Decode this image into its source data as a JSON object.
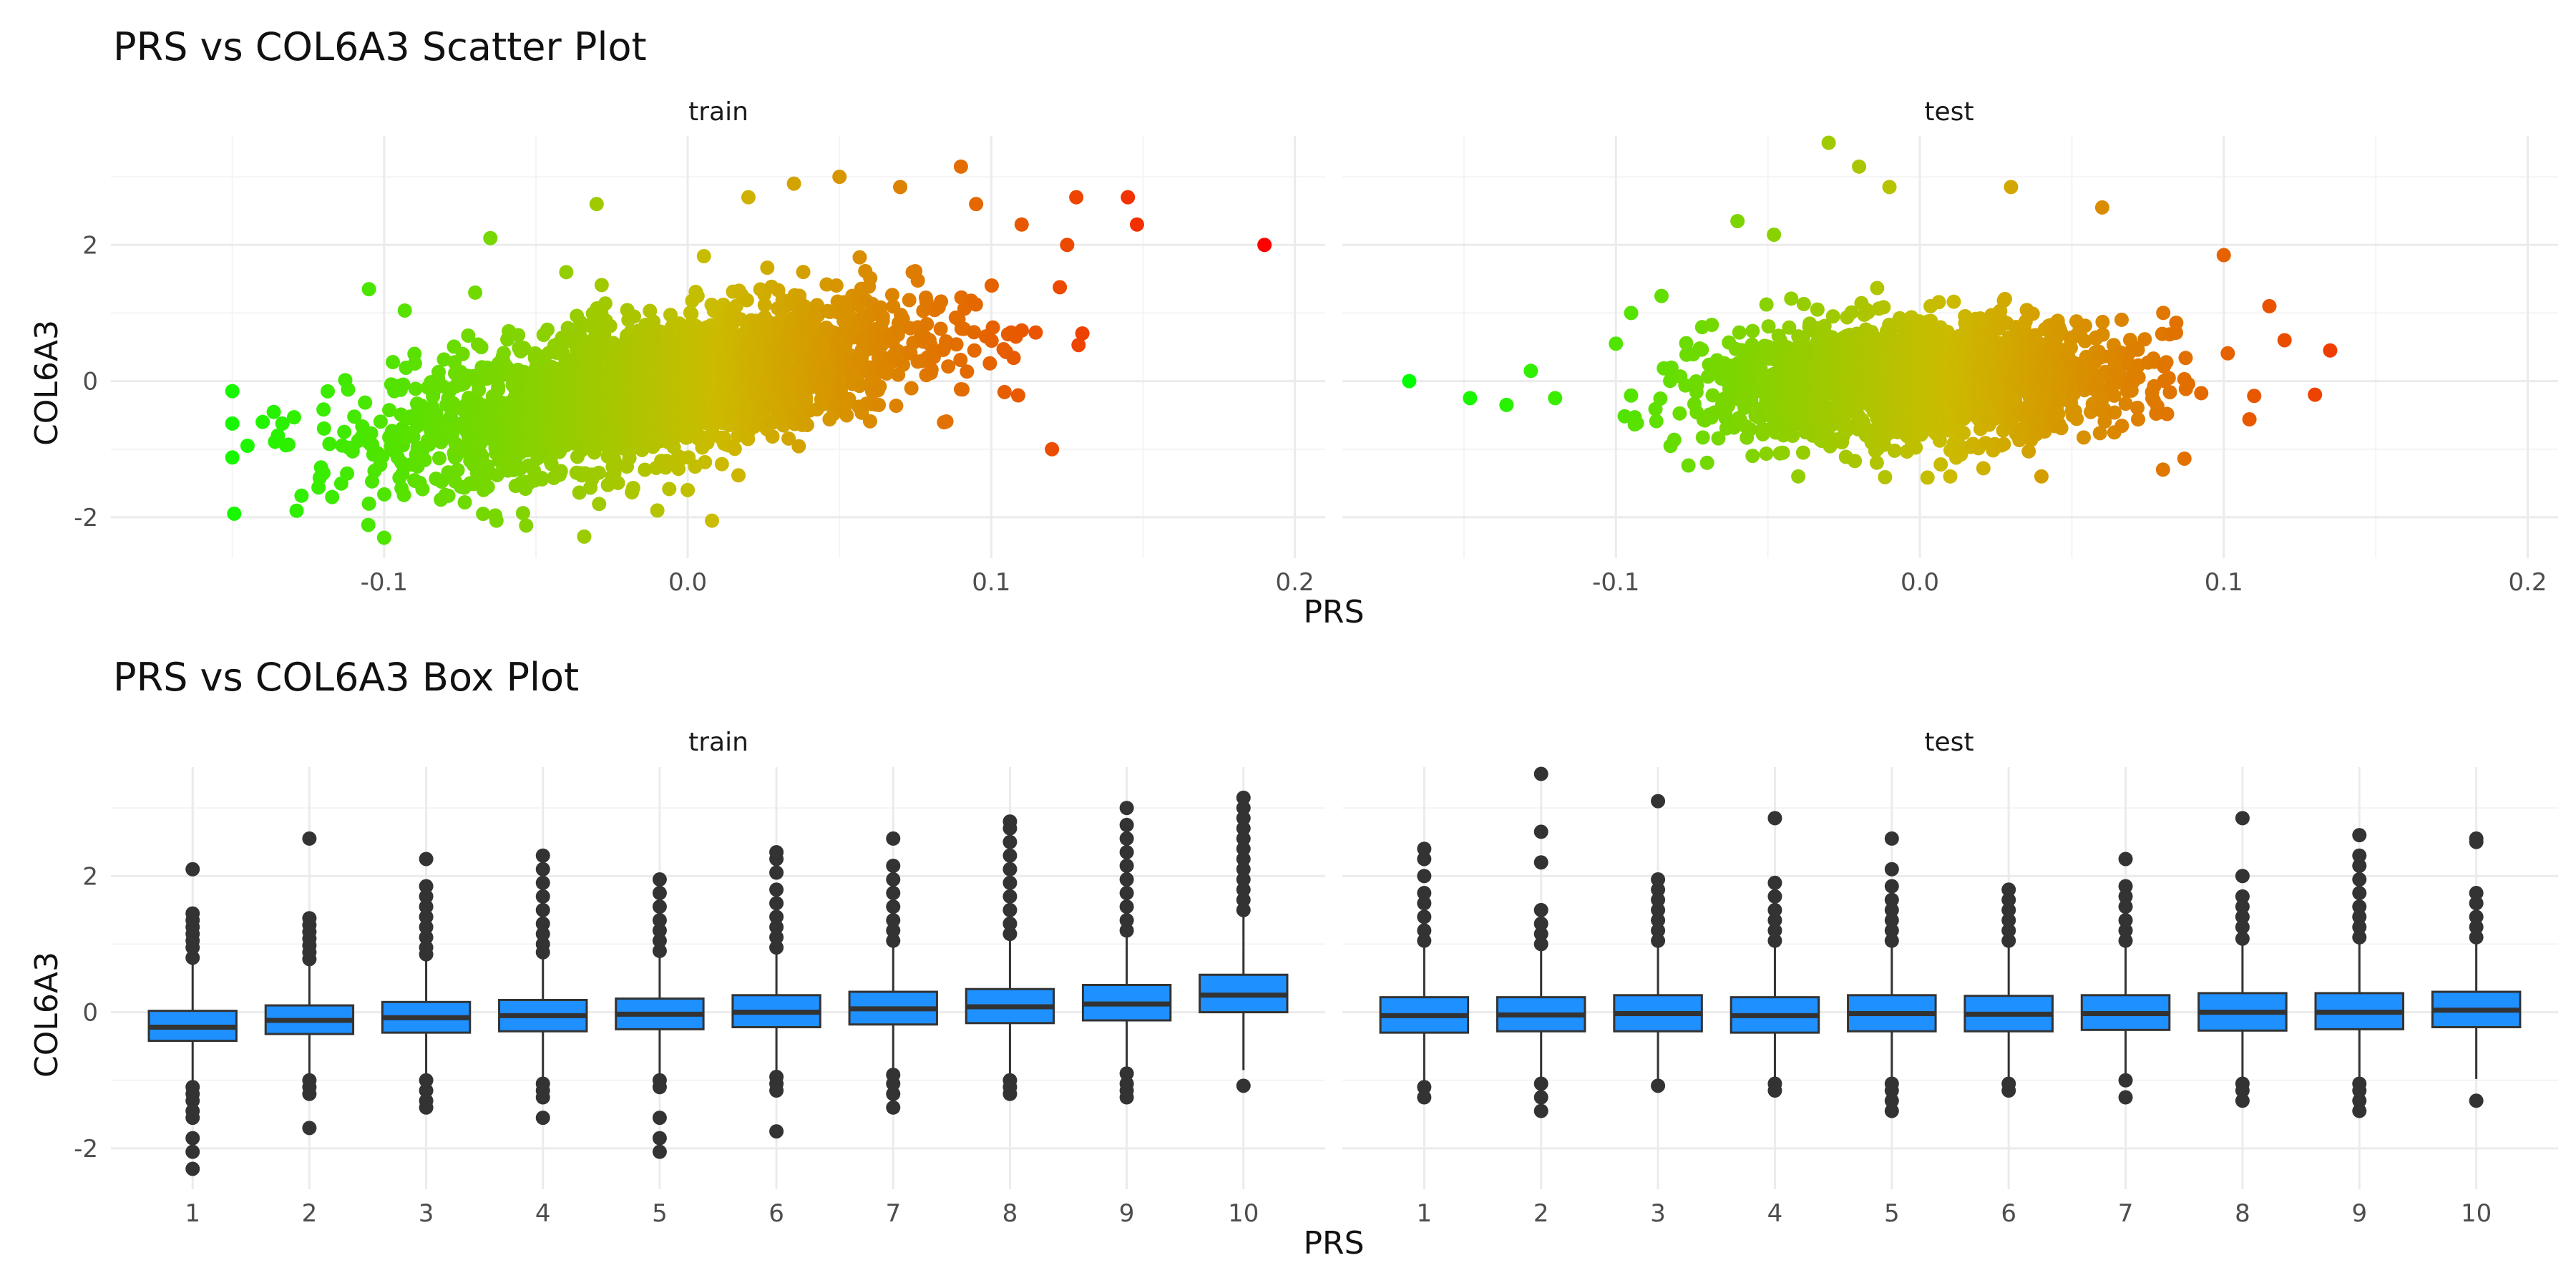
{
  "chart_data": [
    {
      "type": "scatter",
      "title": "PRS vs COL6A3 Scatter Plot",
      "xlabel": "PRS",
      "ylabel": "COL6A3",
      "panels": [
        "train",
        "test"
      ],
      "xlim": [
        -0.19,
        0.21
      ],
      "ylim": [
        -2.6,
        3.6
      ],
      "xticks": [
        -0.1,
        0.0,
        0.1,
        0.2
      ],
      "xtick_labels": [
        "-0.1",
        "0.0",
        "0.1",
        "0.2"
      ],
      "yticks": [
        -2,
        0,
        2
      ],
      "ytick_labels": [
        "-2",
        "0",
        "2"
      ],
      "color_scale": {
        "low": "#00ff00",
        "high": "#ff0000",
        "mapped_to": "PRS"
      },
      "grid": true,
      "legend": "none",
      "series": [
        {
          "panel": "train",
          "cloud": {
            "x_range": [
              -0.15,
              0.14
            ],
            "slope": 8.0,
            "x_sd": 0.042,
            "y_sd": 0.5,
            "n": 2600
          },
          "points": [
            {
              "x": -0.145,
              "y": -0.95
            },
            {
              "x": -0.14,
              "y": -0.6
            },
            {
              "x": -0.135,
              "y": -0.8
            },
            {
              "x": -0.12,
              "y": -1.35
            },
            {
              "x": -0.105,
              "y": 1.35
            },
            {
              "x": -0.105,
              "y": -1.8
            },
            {
              "x": -0.1,
              "y": -2.3
            },
            {
              "x": -0.09,
              "y": 0.4
            },
            {
              "x": -0.07,
              "y": 1.3
            },
            {
              "x": -0.065,
              "y": 2.1
            },
            {
              "x": -0.063,
              "y": -2.05
            },
            {
              "x": -0.055,
              "y": -1.5
            },
            {
              "x": -0.04,
              "y": 1.6
            },
            {
              "x": -0.03,
              "y": 2.6
            },
            {
              "x": -0.01,
              "y": -1.9
            },
            {
              "x": 0.0,
              "y": -1.6
            },
            {
              "x": 0.008,
              "y": -2.05
            },
            {
              "x": 0.02,
              "y": 2.7
            },
            {
              "x": 0.035,
              "y": 2.9
            },
            {
              "x": 0.05,
              "y": 3.0
            },
            {
              "x": 0.07,
              "y": 2.85
            },
            {
              "x": 0.09,
              "y": 3.15
            },
            {
              "x": 0.095,
              "y": 2.6
            },
            {
              "x": 0.11,
              "y": 2.3
            },
            {
              "x": 0.12,
              "y": -1.0
            },
            {
              "x": 0.125,
              "y": 2.0
            },
            {
              "x": 0.128,
              "y": 2.7
            },
            {
              "x": 0.13,
              "y": 0.7
            },
            {
              "x": 0.145,
              "y": 2.7
            },
            {
              "x": 0.148,
              "y": 2.3
            },
            {
              "x": 0.19,
              "y": 2.0
            }
          ]
        },
        {
          "panel": "test",
          "cloud": {
            "x_range": [
              -0.1,
              0.11
            ],
            "slope": 1.5,
            "x_sd": 0.034,
            "y_sd": 0.42,
            "n": 1900
          },
          "points": [
            {
              "x": -0.168,
              "y": 0.0
            },
            {
              "x": -0.148,
              "y": -0.25
            },
            {
              "x": -0.136,
              "y": -0.35
            },
            {
              "x": -0.128,
              "y": 0.15
            },
            {
              "x": -0.12,
              "y": -0.25
            },
            {
              "x": -0.1,
              "y": 0.55
            },
            {
              "x": -0.095,
              "y": 1.0
            },
            {
              "x": -0.085,
              "y": 1.25
            },
            {
              "x": -0.07,
              "y": -1.2
            },
            {
              "x": -0.06,
              "y": 2.35
            },
            {
              "x": -0.048,
              "y": 2.15
            },
            {
              "x": -0.04,
              "y": -1.4
            },
            {
              "x": -0.03,
              "y": 3.5
            },
            {
              "x": -0.02,
              "y": 3.15
            },
            {
              "x": -0.01,
              "y": 2.85
            },
            {
              "x": 0.01,
              "y": -1.4
            },
            {
              "x": 0.03,
              "y": 2.85
            },
            {
              "x": 0.04,
              "y": -1.4
            },
            {
              "x": 0.06,
              "y": 2.55
            },
            {
              "x": 0.08,
              "y": -1.3
            },
            {
              "x": 0.1,
              "y": 1.85
            },
            {
              "x": 0.115,
              "y": 1.1
            },
            {
              "x": 0.12,
              "y": 0.6
            },
            {
              "x": 0.13,
              "y": -0.2
            },
            {
              "x": 0.135,
              "y": 0.45
            }
          ]
        }
      ]
    },
    {
      "type": "box",
      "title": "PRS vs COL6A3 Box Plot",
      "xlabel": "PRS",
      "ylabel": "COL6A3",
      "panels": [
        "train",
        "test"
      ],
      "categories": [
        "1",
        "2",
        "3",
        "4",
        "5",
        "6",
        "7",
        "8",
        "9",
        "10"
      ],
      "ylim": [
        -2.6,
        3.6
      ],
      "yticks": [
        -2,
        0,
        2
      ],
      "ytick_labels": [
        "-2",
        "0",
        "2"
      ],
      "fill_color": "#1e90ff",
      "grid": true,
      "series": [
        {
          "panel": "train",
          "boxes": [
            {
              "q1": -0.42,
              "median": -0.22,
              "q3": 0.02,
              "whisker_low": -1.05,
              "whisker_high": 0.72,
              "outliers_high": [
                0.8,
                0.95,
                1.05,
                1.15,
                1.25,
                1.35,
                1.45,
                2.1
              ],
              "outliers_low": [
                -1.1,
                -1.2,
                -1.3,
                -1.45,
                -1.55,
                -1.85,
                -2.05,
                -2.3
              ]
            },
            {
              "q1": -0.32,
              "median": -0.12,
              "q3": 0.1,
              "whisker_low": -0.95,
              "whisker_high": 0.72,
              "outliers_high": [
                0.78,
                0.88,
                0.98,
                1.08,
                1.18,
                1.28,
                1.38,
                2.55
              ],
              "outliers_low": [
                -1.0,
                -1.1,
                -1.2,
                -1.7
              ]
            },
            {
              "q1": -0.3,
              "median": -0.08,
              "q3": 0.15,
              "whisker_low": -0.95,
              "whisker_high": 0.8,
              "outliers_high": [
                0.85,
                0.95,
                1.1,
                1.25,
                1.4,
                1.55,
                1.7,
                1.85,
                2.25
              ],
              "outliers_low": [
                -1.0,
                -1.15,
                -1.3,
                -1.4
              ]
            },
            {
              "q1": -0.28,
              "median": -0.05,
              "q3": 0.18,
              "whisker_low": -1.0,
              "whisker_high": 0.82,
              "outliers_high": [
                0.88,
                1.0,
                1.15,
                1.3,
                1.5,
                1.7,
                1.9,
                2.1,
                2.3
              ],
              "outliers_low": [
                -1.05,
                -1.15,
                -1.25,
                -1.55
              ]
            },
            {
              "q1": -0.25,
              "median": -0.03,
              "q3": 0.2,
              "whisker_low": -0.95,
              "whisker_high": 0.85,
              "outliers_high": [
                0.9,
                1.05,
                1.2,
                1.35,
                1.55,
                1.75,
                1.95
              ],
              "outliers_low": [
                -1.0,
                -1.1,
                -1.55,
                -1.85,
                -2.05
              ]
            },
            {
              "q1": -0.22,
              "median": 0.0,
              "q3": 0.25,
              "whisker_low": -0.9,
              "whisker_high": 0.9,
              "outliers_high": [
                0.95,
                1.1,
                1.25,
                1.4,
                1.6,
                1.8,
                2.05,
                2.25,
                2.35
              ],
              "outliers_low": [
                -0.95,
                -1.05,
                -1.15,
                -1.75
              ]
            },
            {
              "q1": -0.18,
              "median": 0.05,
              "q3": 0.3,
              "whisker_low": -0.88,
              "whisker_high": 0.98,
              "outliers_high": [
                1.05,
                1.2,
                1.35,
                1.55,
                1.75,
                1.95,
                2.15,
                2.55
              ],
              "outliers_low": [
                -0.92,
                -1.05,
                -1.2,
                -1.4
              ]
            },
            {
              "q1": -0.16,
              "median": 0.08,
              "q3": 0.34,
              "whisker_low": -0.9,
              "whisker_high": 1.1,
              "outliers_high": [
                1.15,
                1.3,
                1.5,
                1.7,
                1.9,
                2.1,
                2.3,
                2.5,
                2.7,
                2.8
              ],
              "outliers_low": [
                -1.0,
                -1.1,
                -1.2
              ]
            },
            {
              "q1": -0.12,
              "median": 0.12,
              "q3": 0.4,
              "whisker_low": -0.85,
              "whisker_high": 1.15,
              "outliers_high": [
                1.2,
                1.35,
                1.55,
                1.75,
                1.95,
                2.15,
                2.35,
                2.55,
                2.75,
                3.0
              ],
              "outliers_low": [
                -0.9,
                -1.05,
                -1.15,
                -1.25
              ]
            },
            {
              "q1": 0.0,
              "median": 0.25,
              "q3": 0.55,
              "whisker_low": -0.85,
              "whisker_high": 1.42,
              "outliers_high": [
                1.5,
                1.65,
                1.8,
                1.95,
                2.1,
                2.25,
                2.4,
                2.55,
                2.7,
                2.85,
                3.0,
                3.15
              ],
              "outliers_low": [
                -1.08
              ]
            }
          ]
        },
        {
          "panel": "test",
          "boxes": [
            {
              "q1": -0.3,
              "median": -0.05,
              "q3": 0.22,
              "whisker_low": -1.0,
              "whisker_high": 0.98,
              "outliers_high": [
                1.05,
                1.2,
                1.4,
                1.6,
                1.75,
                2.0,
                2.25,
                2.4
              ],
              "outliers_low": [
                -1.1,
                -1.25
              ]
            },
            {
              "q1": -0.28,
              "median": -0.04,
              "q3": 0.22,
              "whisker_low": -1.0,
              "whisker_high": 0.95,
              "outliers_high": [
                1.0,
                1.15,
                1.3,
                1.5,
                2.2,
                2.65,
                3.5
              ],
              "outliers_low": [
                -1.05,
                -1.25,
                -1.45
              ]
            },
            {
              "q1": -0.28,
              "median": -0.02,
              "q3": 0.25,
              "whisker_low": -1.0,
              "whisker_high": 1.0,
              "outliers_high": [
                1.05,
                1.2,
                1.35,
                1.5,
                1.65,
                1.8,
                1.95,
                3.1
              ],
              "outliers_low": [
                -1.08
              ]
            },
            {
              "q1": -0.3,
              "median": -0.05,
              "q3": 0.22,
              "whisker_low": -1.0,
              "whisker_high": 1.0,
              "outliers_high": [
                1.05,
                1.2,
                1.35,
                1.5,
                1.7,
                1.9,
                2.85
              ],
              "outliers_low": [
                -1.05,
                -1.15
              ]
            },
            {
              "q1": -0.28,
              "median": -0.02,
              "q3": 0.25,
              "whisker_low": -1.0,
              "whisker_high": 1.0,
              "outliers_high": [
                1.05,
                1.2,
                1.35,
                1.5,
                1.65,
                1.85,
                2.1,
                2.55
              ],
              "outliers_low": [
                -1.05,
                -1.15,
                -1.3,
                -1.45
              ]
            },
            {
              "q1": -0.28,
              "median": -0.03,
              "q3": 0.24,
              "whisker_low": -1.0,
              "whisker_high": 1.0,
              "outliers_high": [
                1.05,
                1.2,
                1.35,
                1.5,
                1.65,
                1.8
              ],
              "outliers_low": [
                -1.05,
                -1.15
              ]
            },
            {
              "q1": -0.26,
              "median": -0.02,
              "q3": 0.25,
              "whisker_low": -0.98,
              "whisker_high": 1.0,
              "outliers_high": [
                1.05,
                1.2,
                1.35,
                1.55,
                1.7,
                1.85,
                2.25
              ],
              "outliers_low": [
                -1.0,
                -1.25
              ]
            },
            {
              "q1": -0.27,
              "median": 0.0,
              "q3": 0.28,
              "whisker_low": -1.0,
              "whisker_high": 1.02,
              "outliers_high": [
                1.08,
                1.25,
                1.4,
                1.55,
                1.7,
                2.0,
                2.85
              ],
              "outliers_low": [
                -1.05,
                -1.15,
                -1.3
              ]
            },
            {
              "q1": -0.25,
              "median": 0.0,
              "q3": 0.28,
              "whisker_low": -1.0,
              "whisker_high": 1.05,
              "outliers_high": [
                1.1,
                1.25,
                1.4,
                1.55,
                1.75,
                1.95,
                2.15,
                2.3,
                2.6
              ],
              "outliers_low": [
                -1.05,
                -1.15,
                -1.3,
                -1.45
              ]
            },
            {
              "q1": -0.22,
              "median": 0.03,
              "q3": 0.3,
              "whisker_low": -0.98,
              "whisker_high": 1.05,
              "outliers_high": [
                1.1,
                1.25,
                1.4,
                1.6,
                1.75,
                2.5,
                2.55
              ],
              "outliers_low": [
                -1.3
              ]
            }
          ]
        }
      ]
    }
  ]
}
